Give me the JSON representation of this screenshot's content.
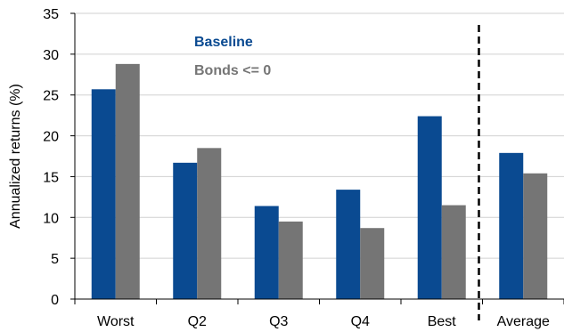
{
  "chart_data": {
    "type": "bar",
    "title": "",
    "xlabel": "",
    "ylabel": "Annualized returns (%)",
    "ylim": [
      0,
      35
    ],
    "yticks": [
      0,
      5,
      10,
      15,
      20,
      25,
      30,
      35
    ],
    "grid": "horizontal",
    "legend_position": "top-left",
    "categories": [
      "Worst",
      "Q2",
      "Q3",
      "Q4",
      "Best",
      "Average"
    ],
    "series": [
      {
        "name": "Baseline",
        "color": "#0a4a91",
        "values": [
          25.7,
          16.7,
          11.4,
          13.4,
          22.4,
          17.9
        ]
      },
      {
        "name": "Bonds <= 0",
        "color": "#757575",
        "values": [
          28.8,
          18.5,
          9.5,
          8.7,
          11.5,
          15.4
        ]
      }
    ],
    "separator": {
      "type": "dashed-vertical",
      "between": [
        "Best",
        "Average"
      ]
    }
  }
}
